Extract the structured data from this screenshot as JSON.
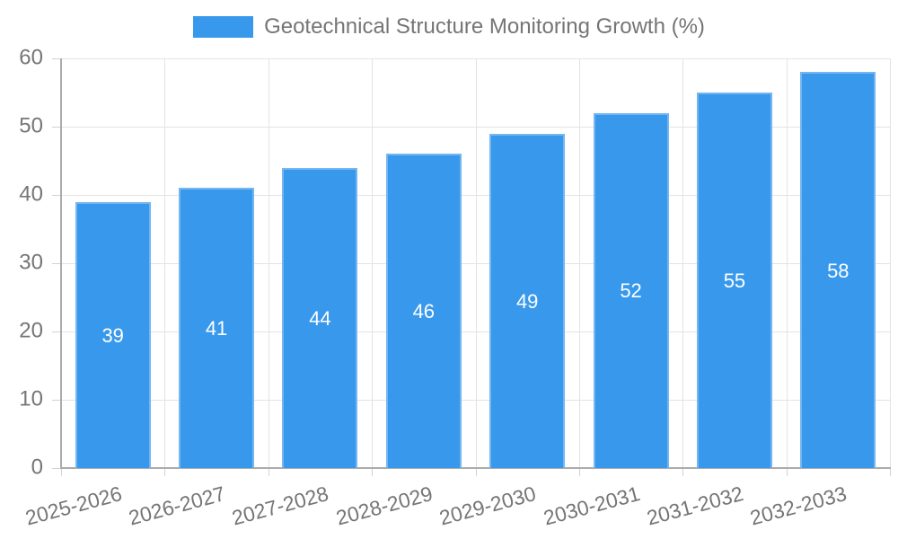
{
  "chart_data": {
    "type": "bar",
    "title": "Geotechnical Structure Monitoring Growth (%)",
    "categories": [
      "2025-2026",
      "2026-2027",
      "2027-2028",
      "2028-2029",
      "2029-2030",
      "2030-2031",
      "2031-2032",
      "2032-2033"
    ],
    "values": [
      39,
      41,
      44,
      46,
      49,
      52,
      55,
      58
    ],
    "xlabel": "",
    "ylabel": "",
    "ylim": [
      0,
      60
    ],
    "y_ticks": [
      0,
      10,
      20,
      30,
      40,
      50,
      60
    ],
    "grid": true,
    "legend_position": "top",
    "colors": {
      "bar_fill": "#3899ec",
      "bar_border": "#74b6f1",
      "value_label": "#ffffff",
      "axis_text": "#757575",
      "gridline": "#e3e3e3",
      "tick": "#d2d2d2",
      "axis_line": "#ababab",
      "background": "#ffffff"
    }
  }
}
